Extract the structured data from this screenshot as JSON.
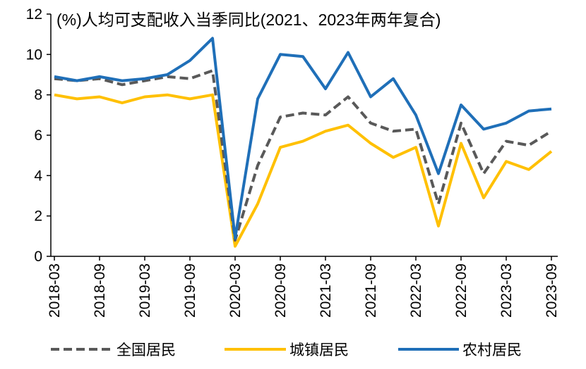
{
  "chart_data": {
    "type": "line",
    "title": "(%)人均可支配收入当季同比(2021、2023年两年复合)",
    "xlabel": "",
    "ylabel": "",
    "ylim": [
      0,
      12
    ],
    "yticks": [
      "0",
      "2",
      "4",
      "6",
      "8",
      "10",
      "12"
    ],
    "grid": false,
    "legend_position": "bottom",
    "x": [
      "2018-03",
      "2018-06",
      "2018-09",
      "2018-12",
      "2019-03",
      "2019-06",
      "2019-09",
      "2019-12",
      "2020-03",
      "2020-06",
      "2020-09",
      "2020-12",
      "2021-03",
      "2021-06",
      "2021-09",
      "2021-12",
      "2022-03",
      "2022-06",
      "2022-09",
      "2022-12",
      "2023-03",
      "2023-06",
      "2023-09"
    ],
    "xtick_labels": [
      "2018-03",
      "2018-09",
      "2019-03",
      "2019-09",
      "2020-03",
      "2020-09",
      "2021-03",
      "2021-09",
      "2022-03",
      "2022-09",
      "2023-03",
      "2023-09"
    ],
    "series": [
      {
        "name": "全国居民",
        "color": "#595959",
        "dash": true,
        "values": [
          8.8,
          8.7,
          8.8,
          8.5,
          8.7,
          8.9,
          8.8,
          9.2,
          0.8,
          4.5,
          6.9,
          7.1,
          7.0,
          7.9,
          6.6,
          6.2,
          6.3,
          2.6,
          6.6,
          4.1,
          5.7,
          5.5,
          6.2
        ]
      },
      {
        "name": "城镇居民",
        "color": "#FFC000",
        "dash": false,
        "values": [
          8.0,
          7.8,
          7.9,
          7.6,
          7.9,
          8.0,
          7.8,
          8.0,
          0.5,
          2.6,
          5.4,
          5.7,
          6.2,
          6.5,
          5.6,
          4.9,
          5.4,
          1.5,
          5.6,
          2.9,
          4.7,
          4.3,
          5.2
        ]
      },
      {
        "name": "农村居民",
        "color": "#1F6FB8",
        "dash": false,
        "values": [
          8.9,
          8.7,
          8.9,
          8.7,
          8.8,
          9.0,
          9.7,
          10.8,
          0.9,
          7.8,
          10.0,
          9.9,
          8.3,
          10.1,
          7.9,
          8.8,
          7.0,
          4.1,
          7.5,
          6.3,
          6.6,
          7.2,
          7.3
        ]
      }
    ]
  }
}
